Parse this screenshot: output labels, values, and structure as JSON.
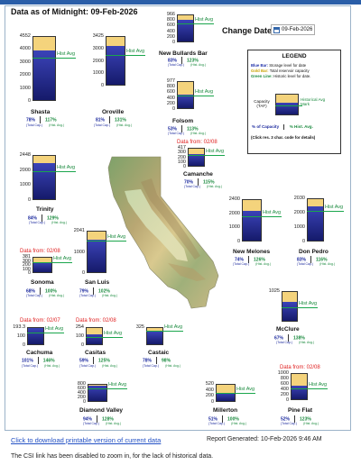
{
  "header": {
    "title": "Data as of Midnight: 09-Feb-2026",
    "change_date_label": "Change Date:",
    "date_value": "09-Feb-2026"
  },
  "legend": {
    "title": "LEGEND",
    "blue_bar": "Blue Bar:",
    "blue_bar_desc": " Storage level for date",
    "gold_bar": "Gold Bar:",
    "gold_bar_desc": " Total reservoir capacity",
    "green_line": "Green Line:",
    "green_line_desc": " Historic level for date.",
    "capacity_label": "Capacity",
    "capacity_units": "(TAF)",
    "hist_mark_label": "Historical Avg Mark",
    "pct_capacity": "% of Capacity",
    "pct_hist": "% Hist. Avg.",
    "click_note": "(Click res. 3 char. code for details)"
  },
  "labels": {
    "hist_avg": "Hist Avg",
    "total_cap": "(Total Cap.)",
    "hist_avg_small": "(Hist. Avg.)"
  },
  "reservoirs": [
    {
      "id": "shasta",
      "name": "Shasta",
      "pct_cap": "78%",
      "pct_hist": "117%",
      "ticks": [
        "4552",
        "4000",
        "3000",
        "2000",
        "1000",
        "0"
      ],
      "fill": 0.78,
      "hist": 0.667
    },
    {
      "id": "oroville",
      "name": "Oroville",
      "pct_cap": "81%",
      "pct_hist": "131%",
      "ticks": [
        "3425",
        "3000",
        "2000",
        "1000",
        "0"
      ],
      "fill": 0.81,
      "hist": 0.62
    },
    {
      "id": "bullards",
      "name": "New Bullards Bar",
      "pct_cap": "83%",
      "pct_hist": "123%",
      "ticks": [
        "966",
        "800",
        "600",
        "400",
        "200",
        "0"
      ],
      "fill": 0.83,
      "hist": 0.675
    },
    {
      "id": "folsom",
      "name": "Folsom",
      "pct_cap": "53%",
      "pct_hist": "113%",
      "ticks": [
        "977",
        "800",
        "600",
        "400",
        "200",
        "0"
      ],
      "fill": 0.53,
      "hist": 0.47
    },
    {
      "id": "camanche",
      "name": "Camanche",
      "pct_cap": "70%",
      "pct_hist": "115%",
      "ticks": [
        "417",
        "300",
        "200",
        "100",
        "0"
      ],
      "fill": 0.7,
      "hist": 0.61,
      "data_from": "Data from: 02/08"
    },
    {
      "id": "trinity",
      "name": "Trinity",
      "pct_cap": "84%",
      "pct_hist": "129%",
      "ticks": [
        "2448",
        "2000",
        "1000",
        "0"
      ],
      "fill": 0.84,
      "hist": 0.65
    },
    {
      "id": "melones",
      "name": "New Melones",
      "pct_cap": "74%",
      "pct_hist": "126%",
      "ticks": [
        "2400",
        "2000",
        "1000",
        "0"
      ],
      "fill": 0.74,
      "hist": 0.59
    },
    {
      "id": "donpedro",
      "name": "Don Pedro",
      "pct_cap": "83%",
      "pct_hist": "116%",
      "ticks": [
        "2030",
        "2000",
        "1000",
        "0"
      ],
      "fill": 0.83,
      "hist": 0.715
    },
    {
      "id": "sanluis",
      "name": "San Luis",
      "pct_cap": "79%",
      "pct_hist": "102%",
      "ticks": [
        "2041",
        "1000",
        "0"
      ],
      "fill": 0.79,
      "hist": 0.775
    },
    {
      "id": "sonoma",
      "name": "Sonoma",
      "pct_cap": "68%",
      "pct_hist": "100%",
      "ticks": [
        "381",
        "300",
        "200",
        "100",
        "0"
      ],
      "fill": 0.68,
      "hist": 0.68,
      "data_from": "Data from: 02/08"
    },
    {
      "id": "mcclure",
      "name": "McClure",
      "pct_cap": "67%",
      "pct_hist": "138%",
      "ticks": [
        "1025"
      ],
      "fill": 0.67,
      "hist": 0.485
    },
    {
      "id": "cachuma",
      "name": "Cachuma",
      "pct_cap": "101%",
      "pct_hist": "146%",
      "ticks": [
        "193.3",
        "100",
        "0"
      ],
      "fill": 1.0,
      "hist": 0.69,
      "data_from": "Data from: 02/07"
    },
    {
      "id": "casitas",
      "name": "Casitas",
      "pct_cap": "59%",
      "pct_hist": "125%",
      "ticks": [
        "254",
        "100",
        "0"
      ],
      "fill": 0.59,
      "hist": 0.47,
      "data_from": "Data from: 02/08"
    },
    {
      "id": "castaic",
      "name": "Castaic",
      "pct_cap": "78%",
      "pct_hist": "98%",
      "ticks": [
        "325"
      ],
      "fill": 0.78,
      "hist": 0.8
    },
    {
      "id": "diamond",
      "name": "Diamond Valley",
      "pct_cap": "94%",
      "pct_hist": "128%",
      "ticks": [
        "800",
        "600",
        "400",
        "200",
        "0"
      ],
      "fill": 0.94,
      "hist": 0.73
    },
    {
      "id": "millerton",
      "name": "Millerton",
      "pct_cap": "51%",
      "pct_hist": "100%",
      "ticks": [
        "520",
        "400",
        "200",
        "0"
      ],
      "fill": 0.51,
      "hist": 0.51
    },
    {
      "id": "pineflat",
      "name": "Pine Flat",
      "pct_cap": "52%",
      "pct_hist": "123%",
      "ticks": [
        "1000",
        "800",
        "600",
        "400",
        "200",
        "0"
      ],
      "fill": 0.52,
      "hist": 0.42,
      "data_from": "Data from: 02/08"
    }
  ],
  "legend_example": {
    "fill": 0.6,
    "hist": 0.45
  },
  "footer": {
    "download_link": "Click to download printable version of current data",
    "report_generated": "Report Generated:  10-Feb-2026 9:46 AM",
    "note": "The CSI link has been disabled to zoom in, for the lack of historical data."
  }
}
